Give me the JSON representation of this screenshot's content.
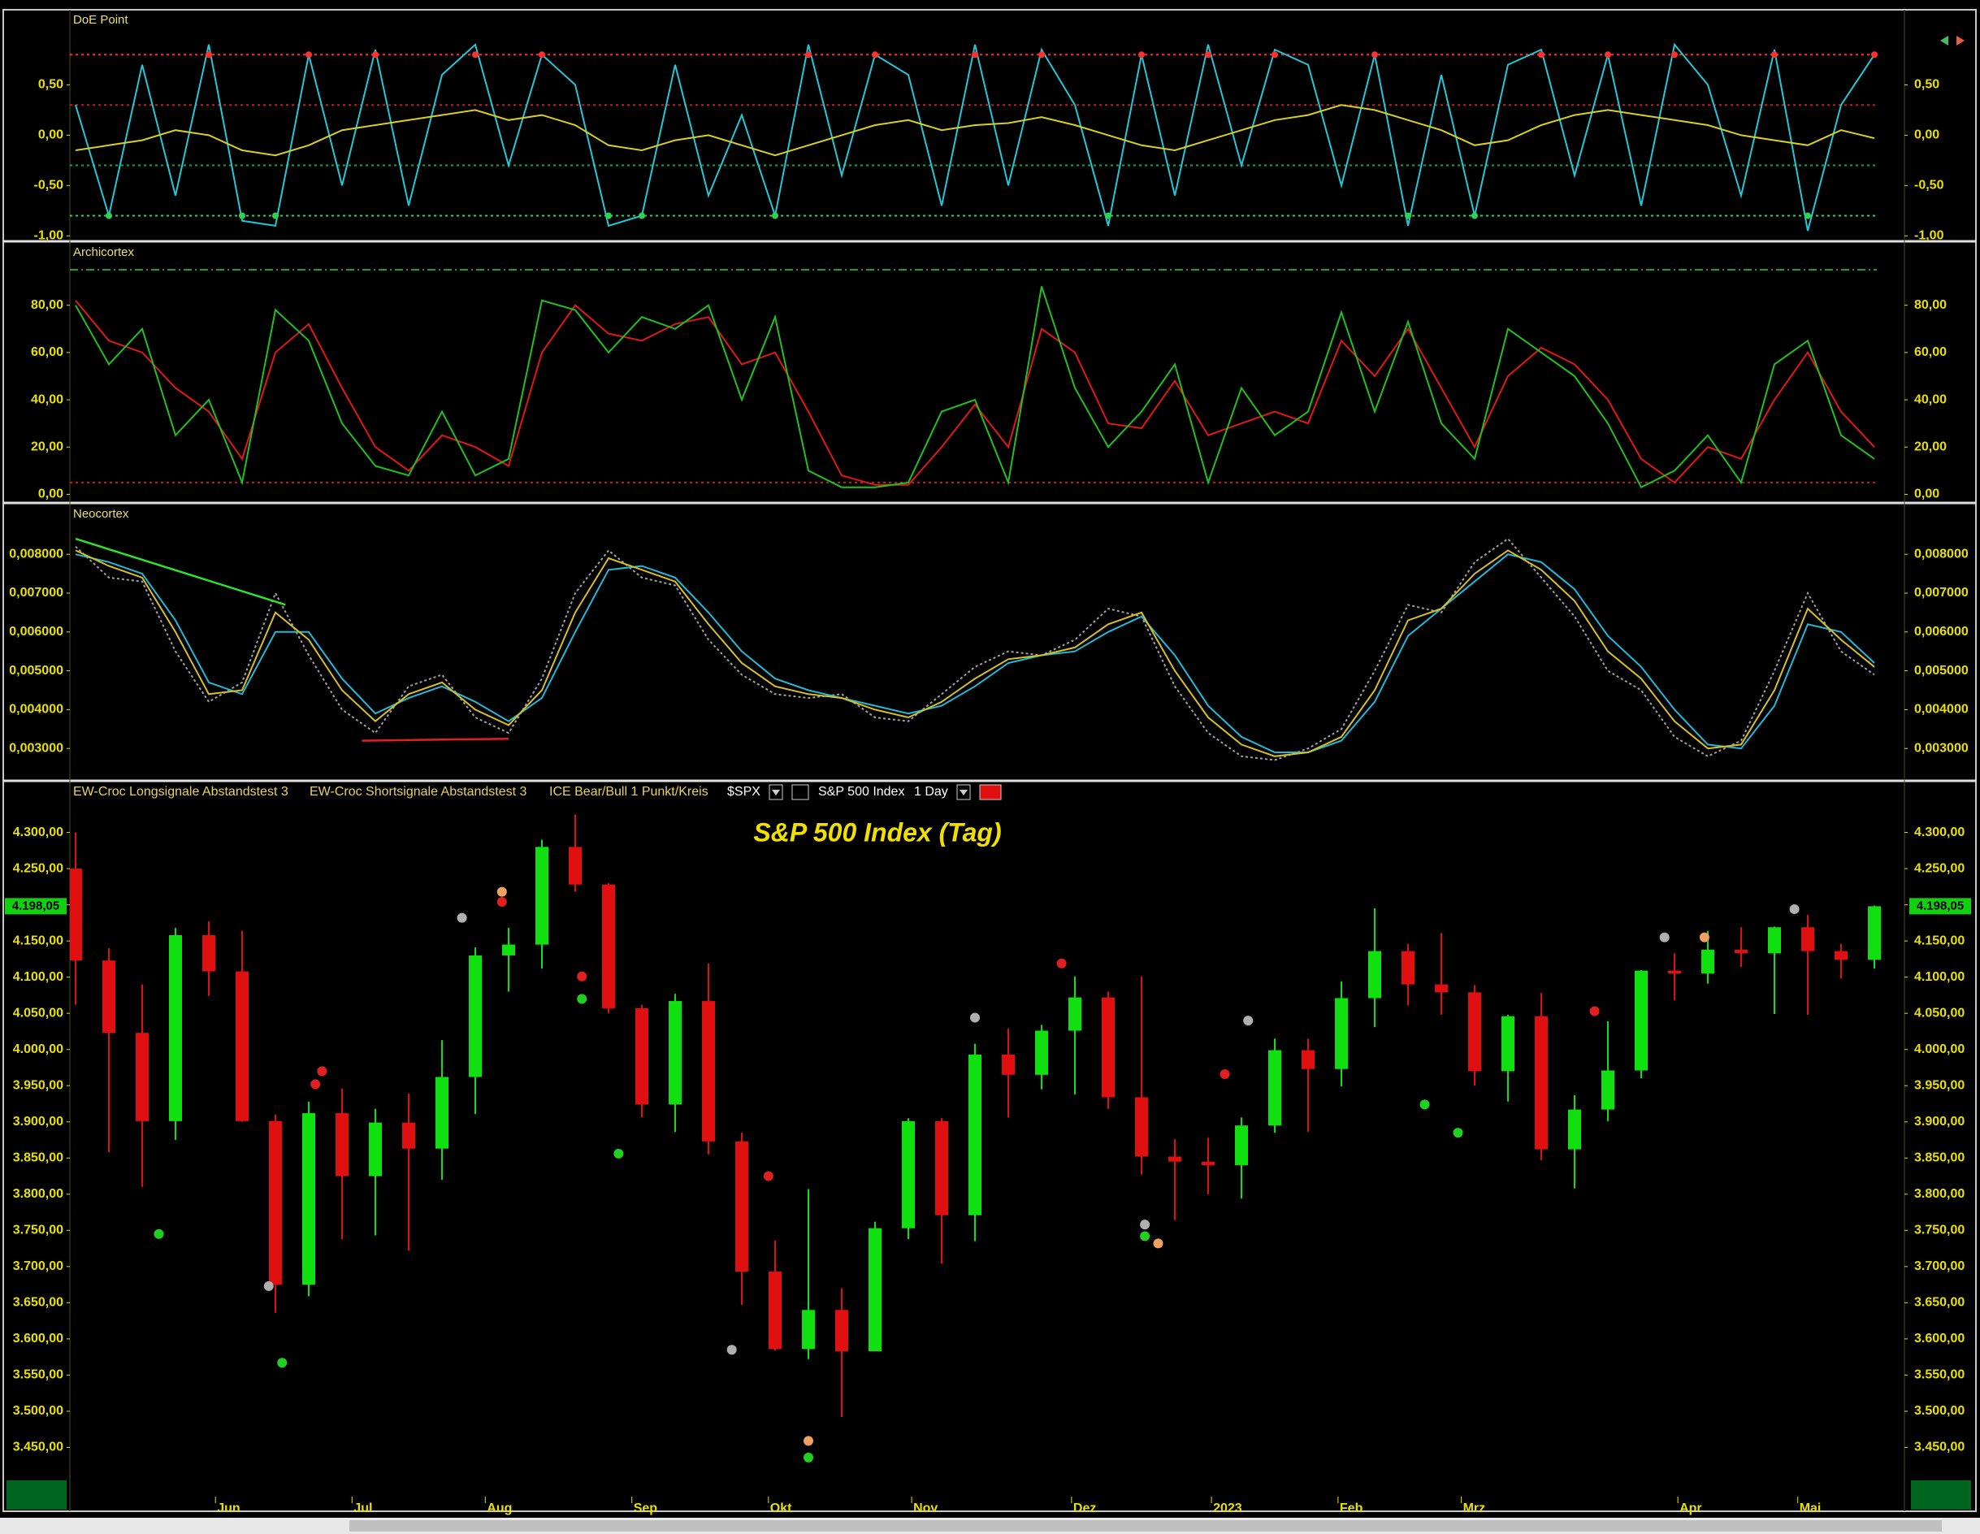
{
  "chart_data": [
    {
      "type": "line",
      "title": "DoE Point",
      "ylim": [
        -1.03,
        1.23
      ],
      "yticks": [
        {
          "value": 0.5,
          "label": "0,50"
        },
        {
          "value": 0,
          "label": "0,00"
        },
        {
          "value": -0.5,
          "label": "-0,50"
        },
        {
          "value": -1,
          "label": "-1,00"
        }
      ],
      "levels": [
        {
          "value": 0.8,
          "color": "#ff3030"
        },
        {
          "value": 0.3,
          "color": "#c02020"
        },
        {
          "value": -0.3,
          "color": "#20a040"
        },
        {
          "value": -0.8,
          "color": "#30d050"
        }
      ],
      "series": [
        {
          "color": "#22c8d8",
          "values": [
            0.3,
            -0.8,
            0.7,
            -0.6,
            0.9,
            -0.85,
            -0.9,
            0.8,
            -0.5,
            0.85,
            -0.7,
            0.6,
            0.9,
            -0.3,
            0.8,
            0.5,
            -0.9,
            -0.8,
            0.7,
            -0.6,
            0.2,
            -0.8,
            0.9,
            -0.4,
            0.8,
            0.6,
            -0.7,
            0.9,
            -0.5,
            0.85,
            0.3,
            -0.9,
            0.8,
            -0.6,
            0.9,
            -0.3,
            0.85,
            0.7,
            -0.5,
            0.8,
            -0.9,
            0.6,
            -0.8,
            0.7,
            0.85,
            -0.4,
            0.8,
            -0.7,
            0.9,
            0.5,
            -0.6,
            0.85,
            -0.95,
            0.3,
            0.8
          ]
        },
        {
          "color": "#d8d020",
          "values": [
            -0.15,
            -0.1,
            -0.05,
            0.05,
            0,
            -0.15,
            -0.2,
            -0.1,
            0.05,
            0.1,
            0.15,
            0.2,
            0.25,
            0.15,
            0.2,
            0.1,
            -0.1,
            -0.15,
            -0.05,
            0,
            -0.1,
            -0.2,
            -0.1,
            0,
            0.1,
            0.15,
            0.05,
            0.1,
            0.12,
            0.18,
            0.1,
            0,
            -0.1,
            -0.15,
            -0.05,
            0.05,
            0.15,
            0.2,
            0.3,
            0.25,
            0.15,
            0.05,
            -0.1,
            -0.05,
            0.1,
            0.2,
            0.25,
            0.2,
            0.15,
            0.1,
            0,
            -0.05,
            -0.1,
            0.05,
            -0.03
          ]
        }
      ]
    },
    {
      "type": "line",
      "title": "Archicortex",
      "ylim": [
        -2.6,
        106
      ],
      "yticks": [
        {
          "value": 0,
          "label": "0,00"
        },
        {
          "value": 20,
          "label": "20,00"
        },
        {
          "value": 40,
          "label": "40,00"
        },
        {
          "value": 60,
          "label": "60,00"
        },
        {
          "value": 80,
          "label": "80,00"
        }
      ],
      "levels": [
        {
          "value": 95,
          "color": "#20a020"
        },
        {
          "value": 5,
          "color": "#c02020"
        }
      ],
      "series": [
        {
          "color": "#e01818",
          "values": [
            82,
            65,
            60,
            45,
            35,
            15,
            60,
            72,
            45,
            20,
            10,
            25,
            20,
            12,
            60,
            80,
            68,
            65,
            72,
            75,
            55,
            60,
            35,
            8,
            4,
            4,
            20,
            38,
            20,
            70,
            60,
            30,
            28,
            48,
            25,
            30,
            35,
            30,
            65,
            50,
            70,
            45,
            20,
            50,
            62,
            55,
            40,
            15,
            5,
            20,
            15,
            40,
            60,
            35,
            20
          ]
        },
        {
          "color": "#20c020",
          "values": [
            80,
            55,
            70,
            25,
            40,
            5,
            78,
            65,
            30,
            12,
            8,
            35,
            8,
            15,
            82,
            78,
            60,
            75,
            70,
            80,
            40,
            75,
            10,
            3,
            3,
            5,
            35,
            40,
            5,
            88,
            45,
            20,
            35,
            55,
            5,
            45,
            25,
            35,
            77,
            35,
            73,
            30,
            15,
            70,
            60,
            50,
            30,
            3,
            10,
            25,
            5,
            55,
            65,
            25,
            15
          ]
        }
      ]
    },
    {
      "type": "line",
      "title": "Neocortex",
      "ylim": [
        0.00223,
        0.00926
      ],
      "yticks": [
        {
          "value": 0.008,
          "label": "0,008000"
        },
        {
          "value": 0.007,
          "label": "0,007000"
        },
        {
          "value": 0.006,
          "label": "0,006000"
        },
        {
          "value": 0.005,
          "label": "0,005000"
        },
        {
          "value": 0.004,
          "label": "0,004000"
        },
        {
          "value": 0.003,
          "label": "0,003000"
        }
      ],
      "series": [
        {
          "color": "#a0a0a0",
          "dashed": true,
          "values": [
            0.0082,
            0.0074,
            0.0073,
            0.0055,
            0.0042,
            0.0047,
            0.007,
            0.0054,
            0.004,
            0.0034,
            0.0046,
            0.0049,
            0.0038,
            0.0034,
            0.0048,
            0.007,
            0.0081,
            0.0074,
            0.0072,
            0.0058,
            0.0049,
            0.0044,
            0.0043,
            0.0044,
            0.0038,
            0.0037,
            0.0044,
            0.0051,
            0.0055,
            0.0054,
            0.0058,
            0.0066,
            0.0064,
            0.0046,
            0.0034,
            0.0028,
            0.0027,
            0.003,
            0.0035,
            0.005,
            0.0067,
            0.0065,
            0.0078,
            0.0084,
            0.0074,
            0.0064,
            0.005,
            0.0045,
            0.0033,
            0.0028,
            0.0032,
            0.005,
            0.007,
            0.0055,
            0.0049
          ]
        },
        {
          "color": "#22b8d8",
          "values": [
            0.008,
            0.0078,
            0.0075,
            0.0063,
            0.0047,
            0.0044,
            0.006,
            0.006,
            0.0048,
            0.0039,
            0.0043,
            0.0046,
            0.0042,
            0.0037,
            0.0043,
            0.006,
            0.0076,
            0.0077,
            0.0074,
            0.0065,
            0.0055,
            0.0048,
            0.0045,
            0.0043,
            0.0041,
            0.0039,
            0.0041,
            0.0046,
            0.0052,
            0.0054,
            0.0055,
            0.006,
            0.0064,
            0.0054,
            0.0041,
            0.0033,
            0.0029,
            0.0029,
            0.0032,
            0.0042,
            0.0059,
            0.0066,
            0.0073,
            0.008,
            0.0078,
            0.0071,
            0.0059,
            0.0051,
            0.004,
            0.0031,
            0.003,
            0.0041,
            0.0062,
            0.006,
            0.0052
          ]
        },
        {
          "color": "#d8c020",
          "values": [
            0.0081,
            0.0077,
            0.0074,
            0.006,
            0.0044,
            0.0045,
            0.0065,
            0.0058,
            0.0045,
            0.0037,
            0.0044,
            0.0047,
            0.004,
            0.0036,
            0.0045,
            0.0065,
            0.0079,
            0.0076,
            0.0073,
            0.0062,
            0.0052,
            0.0046,
            0.0044,
            0.0043,
            0.004,
            0.0038,
            0.0042,
            0.0048,
            0.0053,
            0.0054,
            0.0056,
            0.0062,
            0.0065,
            0.005,
            0.0038,
            0.0031,
            0.0028,
            0.0029,
            0.0033,
            0.0045,
            0.0063,
            0.0066,
            0.0075,
            0.0081,
            0.0076,
            0.0068,
            0.0055,
            0.0048,
            0.0037,
            0.003,
            0.0031,
            0.0045,
            0.0066,
            0.0058,
            0.0051
          ]
        }
      ],
      "trendlines": [
        {
          "x": [
            0,
            6.3
          ],
          "y": [
            0.0084,
            0.0067
          ],
          "color": "#30e030"
        },
        {
          "x": [
            8.6,
            13
          ],
          "y": [
            0.0032,
            0.00325
          ],
          "color": "#e02020"
        }
      ]
    },
    {
      "type": "candlestick",
      "title": "S&P 500 Index (Tag)",
      "ylim": [
        3382,
        4368
      ],
      "legend": [
        "EW-Croc Longsignale Abstandstest 3",
        "EW-Croc Shortsignale Abstandstest 3",
        "ICE Bear/Bull 1 Punkt/Kreis"
      ],
      "symbol": "$SPX",
      "instrument": "S&P 500 Index",
      "period": "1 Day",
      "last_price": {
        "value": 4198.05,
        "label": "4.198,05"
      },
      "up_color": "#10e010",
      "down_color": "#e01010",
      "yticks": [
        {
          "value": 4300,
          "label": "4.300,00"
        },
        {
          "value": 4250,
          "label": "4.250,00"
        },
        {
          "value": 4200,
          "label": "4.200,00"
        },
        {
          "value": 4150,
          "label": "4.150,00"
        },
        {
          "value": 4100,
          "label": "4.100,00"
        },
        {
          "value": 4050,
          "label": "4.050,00"
        },
        {
          "value": 4000,
          "label": "4.000,00"
        },
        {
          "value": 3950,
          "label": "3.950,00"
        },
        {
          "value": 3900,
          "label": "3.900,00"
        },
        {
          "value": 3850,
          "label": "3.850,00"
        },
        {
          "value": 3800,
          "label": "3.800,00"
        },
        {
          "value": 3750,
          "label": "3.750,00"
        },
        {
          "value": 3700,
          "label": "3.700,00"
        },
        {
          "value": 3650,
          "label": "3.650,00"
        },
        {
          "value": 3600,
          "label": "3.600,00"
        },
        {
          "value": 3550,
          "label": "3.550,00"
        },
        {
          "value": 3500,
          "label": "3.500,00"
        },
        {
          "value": 3450,
          "label": "3.450,00"
        }
      ],
      "xticks": [
        {
          "value": 4.2,
          "label": "Jun"
        },
        {
          "value": 8.3,
          "label": "Jul"
        },
        {
          "value": 12.3,
          "label": "Aug"
        },
        {
          "value": 16.7,
          "label": "Sep"
        },
        {
          "value": 20.8,
          "label": "Okt"
        },
        {
          "value": 25.1,
          "label": "Nov"
        },
        {
          "value": 29.9,
          "label": "Dez"
        },
        {
          "value": 34.1,
          "label": "2023"
        },
        {
          "value": 37.9,
          "label": "Feb"
        },
        {
          "value": 41.6,
          "label": "Mrz"
        },
        {
          "value": 48.1,
          "label": "Apr"
        },
        {
          "value": 51.7,
          "label": "Mai"
        }
      ],
      "open": [
        4250,
        4123,
        4023,
        3901,
        4158,
        4108,
        3901,
        3675,
        3912,
        3825,
        3899,
        3863,
        3962,
        4130,
        4145,
        4280,
        4228,
        4057,
        3924,
        4067,
        3873,
        3693,
        3586,
        3640,
        3583,
        3753,
        3901,
        3771,
        3993,
        3965,
        4026,
        4072,
        3934,
        3852,
        3845,
        3840,
        3895,
        3999,
        3973,
        4071,
        4136,
        4090,
        4079,
        3970,
        4046,
        3862,
        3917,
        3971,
        4109,
        4105,
        4138,
        4133,
        4169,
        4136,
        4124
      ],
      "high": [
        4300,
        4140,
        4090,
        4168,
        4177,
        4164,
        3910,
        3928,
        3946,
        3918,
        3939,
        4013,
        4141,
        4168,
        4290,
        4325,
        4230,
        4062,
        4077,
        4119,
        3885,
        3736,
        3807,
        3670,
        3762,
        3905,
        3905,
        4008,
        4029,
        4034,
        4101,
        4080,
        4101,
        3876,
        3878,
        3906,
        4015,
        4015,
        4094,
        4195,
        4146,
        4161,
        4089,
        4048,
        4078,
        3937,
        4039,
        4110,
        4133,
        4164,
        4169,
        4170,
        4186,
        4146,
        4199
      ],
      "low": [
        4062,
        3858,
        3810,
        3875,
        4074,
        3900,
        3636,
        3659,
        3738,
        3743,
        3722,
        3820,
        3911,
        4080,
        4112,
        4218,
        4050,
        3906,
        3886,
        3855,
        3647,
        3584,
        3572,
        3492,
        3590,
        3738,
        3704,
        3735,
        3906,
        3945,
        3938,
        3918,
        3827,
        3764,
        3800,
        3794,
        3885,
        3886,
        3949,
        4031,
        4061,
        4048,
        3950,
        3928,
        3847,
        3808,
        3901,
        3960,
        4068,
        4091,
        4114,
        4049,
        4048,
        4098,
        4112
      ],
      "close": [
        4123,
        4023,
        3901,
        4158,
        4108,
        3901,
        3675,
        3912,
        3825,
        3899,
        3863,
        3962,
        4130,
        4145,
        4280,
        4228,
        4057,
        3924,
        4067,
        3873,
        3693,
        3586,
        3640,
        3583,
        3753,
        3901,
        3771,
        3993,
        3965,
        4026,
        4072,
        3934,
        3852,
        3845,
        3840,
        3895,
        3999,
        3973,
        4071,
        4136,
        4090,
        4079,
        3970,
        4046,
        3862,
        3917,
        3971,
        4109,
        4105,
        4138,
        4133,
        4169,
        4136,
        4124,
        4198
      ],
      "signals": [
        {
          "x": 2.5,
          "y": 3745,
          "color": "#20d020"
        },
        {
          "x": 6.2,
          "y": 3567,
          "color": "#20d020"
        },
        {
          "x": 7.2,
          "y": 3952,
          "color": "#e02020"
        },
        {
          "x": 7.4,
          "y": 3970,
          "color": "#e02020"
        },
        {
          "x": 5.8,
          "y": 3673,
          "color": "#b0b0b0"
        },
        {
          "x": 11.6,
          "y": 4182,
          "color": "#b0b0b0"
        },
        {
          "x": 12.8,
          "y": 4218,
          "color": "#f0a060"
        },
        {
          "x": 12.8,
          "y": 4204,
          "color": "#e02020"
        },
        {
          "x": 15.2,
          "y": 4070,
          "color": "#20d020"
        },
        {
          "x": 15.2,
          "y": 4101,
          "color": "#e02020"
        },
        {
          "x": 16.3,
          "y": 3856,
          "color": "#20d020"
        },
        {
          "x": 19.7,
          "y": 3585,
          "color": "#b0b0b0"
        },
        {
          "x": 20.8,
          "y": 3825,
          "color": "#e02020"
        },
        {
          "x": 22,
          "y": 3436,
          "color": "#20d020"
        },
        {
          "x": 22,
          "y": 3459,
          "color": "#f0a060"
        },
        {
          "x": 29.6,
          "y": 4119,
          "color": "#e02020"
        },
        {
          "x": 27,
          "y": 4044,
          "color": "#b0b0b0"
        },
        {
          "x": 32.1,
          "y": 3758,
          "color": "#b0b0b0"
        },
        {
          "x": 32.5,
          "y": 3732,
          "color": "#f0a060"
        },
        {
          "x": 32.1,
          "y": 3742,
          "color": "#20d020"
        },
        {
          "x": 34.5,
          "y": 3966,
          "color": "#e02020"
        },
        {
          "x": 35.2,
          "y": 4040,
          "color": "#b0b0b0"
        },
        {
          "x": 45.6,
          "y": 4053,
          "color": "#e02020"
        },
        {
          "x": 41.5,
          "y": 3885,
          "color": "#20d020"
        },
        {
          "x": 40.5,
          "y": 3924,
          "color": "#20d020"
        },
        {
          "x": 47.7,
          "y": 4155,
          "color": "#b0b0b0"
        },
        {
          "x": 48.9,
          "y": 4155,
          "color": "#f0a060"
        },
        {
          "x": 51.6,
          "y": 4194,
          "color": "#b0b0b0"
        }
      ]
    }
  ]
}
